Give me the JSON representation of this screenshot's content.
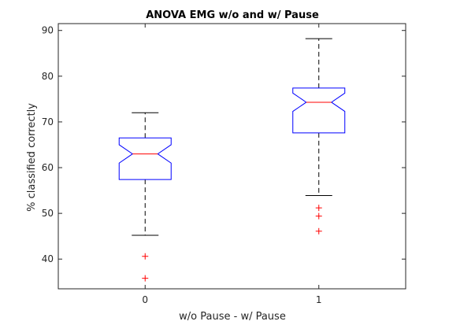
{
  "chart_data": {
    "type": "boxplot",
    "title": "ANOVA EMG w/o and w/ Pause",
    "xlabel": "w/o Pause - w/ Pause",
    "ylabel": "% classified correctly",
    "categories": [
      "0",
      "1"
    ],
    "ylim": [
      33.5,
      91.5
    ],
    "yticks": [
      40,
      50,
      60,
      70,
      80,
      90
    ],
    "grid": false,
    "notched": true,
    "boxes": [
      {
        "category": "0",
        "whisker_low": 45.2,
        "q1": 57.4,
        "median": 63.0,
        "q3": 66.5,
        "whisker_high": 72.0,
        "notch_low": 61.0,
        "notch_high": 65.0,
        "outliers": [
          40.6,
          35.8
        ]
      },
      {
        "category": "1",
        "whisker_low": 53.9,
        "q1": 67.6,
        "median": 74.3,
        "q3": 77.4,
        "whisker_high": 88.2,
        "notch_low": 72.3,
        "notch_high": 76.3,
        "outliers": [
          51.2,
          49.4,
          46.1
        ]
      }
    ],
    "colors": {
      "box": "#0000ff",
      "median": "#ff0000",
      "whisker": "#000000",
      "outlier": "#ff0000",
      "axis": "#262626"
    }
  }
}
